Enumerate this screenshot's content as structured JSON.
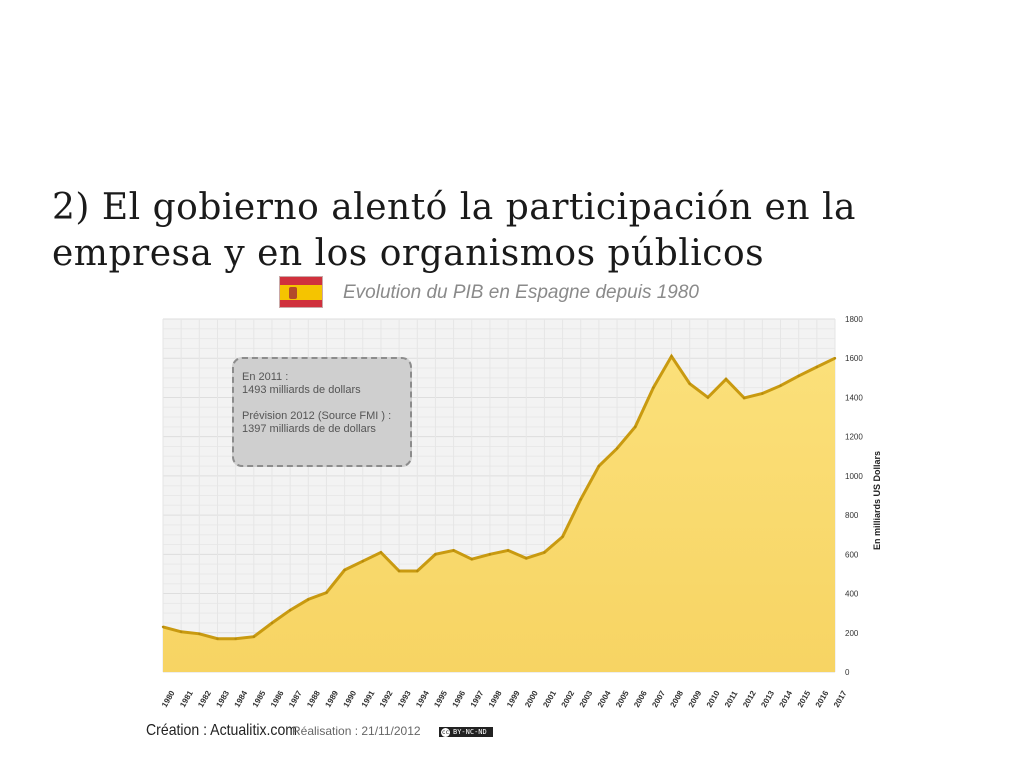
{
  "slide": {
    "title": "2) El gobierno alentó la participación en la empresa y en los organismos públicos"
  },
  "chart_data": {
    "type": "area",
    "title": "Evolution du PIB en Espagne depuis 1980",
    "xlabel": "",
    "ylabel": "En milliards US Dollars",
    "ylim": [
      0,
      1800
    ],
    "yticks": [
      0,
      200,
      400,
      600,
      800,
      1000,
      1200,
      1400,
      1600,
      1800
    ],
    "grid": true,
    "y_axis_side": "right",
    "fill_color": "#f9da6f",
    "line_color": "#d4a20f",
    "x": [
      "1980",
      "1981",
      "1982",
      "1983",
      "1984",
      "1985",
      "1986",
      "1987",
      "1988",
      "1989",
      "1990",
      "1991",
      "1992",
      "1993",
      "1994",
      "1995",
      "1996",
      "1997",
      "1998",
      "1999",
      "2000",
      "2001",
      "2002",
      "2003",
      "2004",
      "2005",
      "2006",
      "2007",
      "2008",
      "2009",
      "2010",
      "2011",
      "2012",
      "2013",
      "2014",
      "2015",
      "2016",
      "2017"
    ],
    "values": [
      230,
      205,
      195,
      170,
      170,
      180,
      250,
      315,
      370,
      405,
      520,
      565,
      610,
      515,
      515,
      600,
      620,
      575,
      600,
      620,
      580,
      610,
      690,
      880,
      1050,
      1140,
      1250,
      1450,
      1610,
      1470,
      1400,
      1493,
      1397,
      1420,
      1460,
      1510,
      1555,
      1600
    ],
    "annotation": {
      "line1": "En 2011 :",
      "line2": "1493 milliards  de dollars",
      "line3": "Prévision 2012 (Source FMI ) :",
      "line4": "1397 milliards  de de dollars"
    }
  },
  "footer": {
    "credit": "Création : Actualitix.com",
    "date": "Réalisation : 21/11/2012",
    "license": "BY-NC-ND",
    "license_icon": "cc"
  },
  "colors": {
    "flag_red": "#d0313d",
    "flag_yellow": "#f5c400"
  }
}
